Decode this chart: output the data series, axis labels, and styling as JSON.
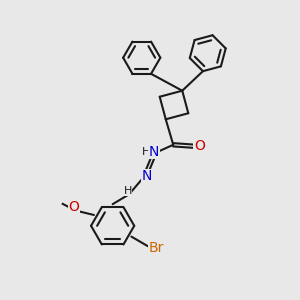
{
  "background_color": "#e8e8e8",
  "bond_color": "#1a1a1a",
  "bond_width": 1.5,
  "font_size": 9,
  "colors": {
    "C": "#1a1a1a",
    "N": "#0000cc",
    "O": "#cc0000",
    "Br": "#cc6600",
    "H": "#1a1a1a"
  }
}
